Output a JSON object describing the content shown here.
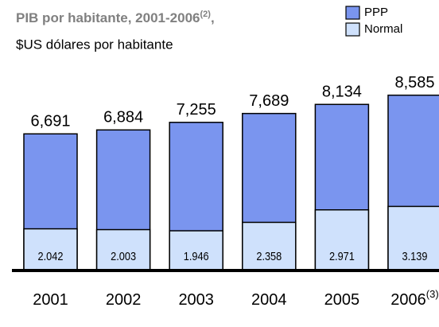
{
  "chart_data": {
    "type": "bar",
    "title": "PIB por habitante, 2001-2006",
    "title_note": "(2)",
    "title_suffix": ",",
    "subtitle": "$US dólares por habitante",
    "categories": [
      "2001",
      "2002",
      "2003",
      "2004",
      "2005",
      "2006"
    ],
    "category_notes": [
      null,
      null,
      null,
      null,
      null,
      "(3)"
    ],
    "series": [
      {
        "name": "PPP",
        "color": "#7a95ef",
        "values": [
          6691,
          6884,
          7255,
          7689,
          8134,
          8585
        ],
        "value_labels": [
          "6,691",
          "6,884",
          "7,255",
          "7,689",
          "8,134",
          "8,585"
        ]
      },
      {
        "name": "Normal",
        "color": "#cfe1fc",
        "values": [
          2042,
          2003,
          1946,
          2358,
          2971,
          3139
        ],
        "value_labels": [
          "2.042",
          "2.003",
          "1.946",
          "2.358",
          "2.971",
          "3.139"
        ]
      }
    ],
    "ylim": [
      0,
      9000
    ],
    "legend": "top-right"
  }
}
